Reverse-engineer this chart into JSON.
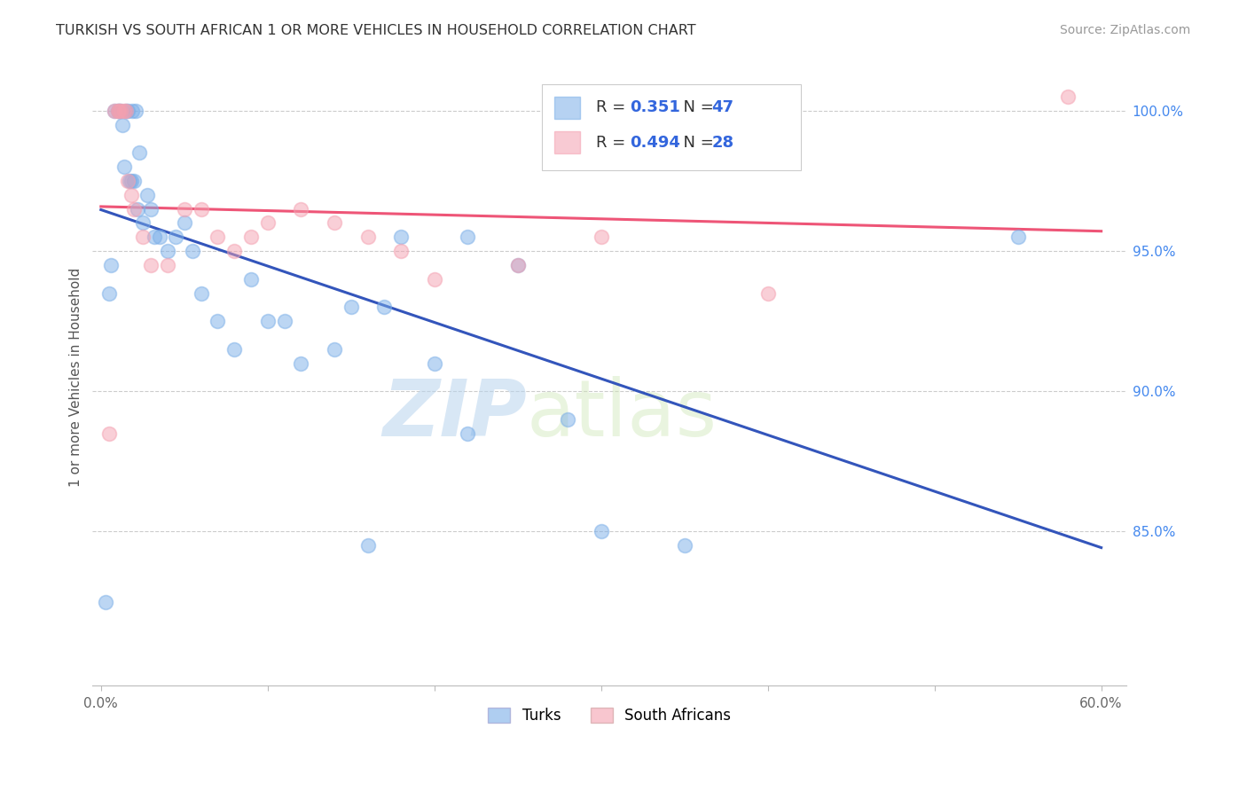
{
  "title": "TURKISH VS SOUTH AFRICAN 1 OR MORE VEHICLES IN HOUSEHOLD CORRELATION CHART",
  "source": "Source: ZipAtlas.com",
  "ylabel": "1 or more Vehicles in Household",
  "x_tick_labels": [
    "0.0%",
    "",
    "",
    "",
    "",
    "",
    "60.0%"
  ],
  "x_tick_vals": [
    0.0,
    10.0,
    20.0,
    30.0,
    40.0,
    50.0,
    60.0
  ],
  "y_tick_labels": [
    "100.0%",
    "95.0%",
    "90.0%",
    "85.0%"
  ],
  "y_tick_vals": [
    100.0,
    95.0,
    90.0,
    85.0
  ],
  "y_min": 79.5,
  "y_max": 101.5,
  "x_min": -0.5,
  "x_max": 61.5,
  "turks_R": 0.351,
  "turks_N": 47,
  "sa_R": 0.494,
  "sa_N": 28,
  "turks_color": "#7aaee8",
  "sa_color": "#f4a0b0",
  "turks_line_color": "#3355bb",
  "sa_line_color": "#ee5577",
  "watermark_zip": "ZIP",
  "watermark_atlas": "atlas",
  "turks_x": [
    0.3,
    0.5,
    0.6,
    0.8,
    1.0,
    1.1,
    1.2,
    1.3,
    1.4,
    1.5,
    1.6,
    1.7,
    1.8,
    1.9,
    2.0,
    2.1,
    2.2,
    2.3,
    2.5,
    2.8,
    3.0,
    3.2,
    3.5,
    4.0,
    4.5,
    5.0,
    5.5,
    6.0,
    7.0,
    8.0,
    9.0,
    10.0,
    11.0,
    12.0,
    14.0,
    15.0,
    16.0,
    17.0,
    18.0,
    20.0,
    22.0,
    25.0,
    28.0,
    30.0,
    35.0,
    22.0,
    55.0
  ],
  "turks_y": [
    82.5,
    93.5,
    94.5,
    100.0,
    100.0,
    100.0,
    100.0,
    99.5,
    98.0,
    100.0,
    100.0,
    97.5,
    97.5,
    100.0,
    97.5,
    100.0,
    96.5,
    98.5,
    96.0,
    97.0,
    96.5,
    95.5,
    95.5,
    95.0,
    95.5,
    96.0,
    95.0,
    93.5,
    92.5,
    91.5,
    94.0,
    92.5,
    92.5,
    91.0,
    91.5,
    93.0,
    84.5,
    93.0,
    95.5,
    91.0,
    88.5,
    94.5,
    89.0,
    85.0,
    84.5,
    95.5,
    95.5
  ],
  "sa_x": [
    0.5,
    0.8,
    1.0,
    1.1,
    1.2,
    1.4,
    1.5,
    1.6,
    1.8,
    2.0,
    2.5,
    3.0,
    4.0,
    5.0,
    6.0,
    7.0,
    8.0,
    9.0,
    10.0,
    12.0,
    14.0,
    16.0,
    18.0,
    20.0,
    25.0,
    30.0,
    40.0,
    58.0
  ],
  "sa_y": [
    88.5,
    100.0,
    100.0,
    100.0,
    100.0,
    100.0,
    100.0,
    97.5,
    97.0,
    96.5,
    95.5,
    94.5,
    94.5,
    96.5,
    96.5,
    95.5,
    95.0,
    95.5,
    96.0,
    96.5,
    96.0,
    95.5,
    95.0,
    94.0,
    94.5,
    95.5,
    93.5,
    100.5
  ]
}
